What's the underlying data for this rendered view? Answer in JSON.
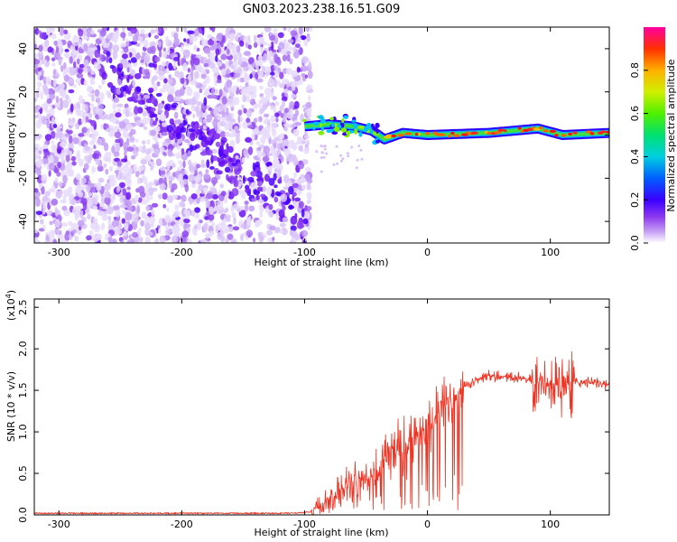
{
  "title": "GN03.2023.238.16.51.G09",
  "colors": {
    "snr_line": "#ee3322",
    "frame": "#000000"
  },
  "chart_data": [
    {
      "type": "heatmap",
      "xlabel": "Height of straight line (km)",
      "ylabel": "Frequency (Hz)",
      "xlim": [
        -320,
        148
      ],
      "ylim": [
        -50,
        50
      ],
      "x_ticks": [
        -300,
        -200,
        -100,
        0,
        100
      ],
      "y_ticks": [
        -40,
        -20,
        0,
        20,
        40
      ],
      "colorbar": {
        "label": "Normalized spectral amplitude",
        "range": [
          0.0,
          1.0
        ],
        "ticks": [
          "0.0",
          "0.2",
          "0.4",
          "0.6",
          "0.8"
        ]
      },
      "features": {
        "noise_region_x": [
          -320,
          -95
        ],
        "diagonal_streak": {
          "x": [
            -250,
            -120
          ],
          "y": [
            25,
            -30
          ]
        },
        "signal_band": [
          {
            "x": -100,
            "y": 4
          },
          {
            "x": -80,
            "y": 5
          },
          {
            "x": -60,
            "y": 4
          },
          {
            "x": -45,
            "y": 2
          },
          {
            "x": -35,
            "y": -2
          },
          {
            "x": -20,
            "y": 1
          },
          {
            "x": 0,
            "y": 0
          },
          {
            "x": 50,
            "y": 1
          },
          {
            "x": 90,
            "y": 3
          },
          {
            "x": 110,
            "y": 0
          },
          {
            "x": 148,
            "y": 1
          }
        ]
      }
    },
    {
      "type": "line",
      "xlabel": "Height of straight line (km)",
      "ylabel": "SNR (10 * v/v)",
      "y_scale_label": "(x10^4)",
      "xlim": [
        -320,
        148
      ],
      "ylim": [
        0.0,
        2.6
      ],
      "x_ticks": [
        -300,
        -200,
        -100,
        0,
        100
      ],
      "y_ticks": [
        "0.0",
        "0.5",
        "1.0",
        "1.5",
        "2.0",
        "2.5"
      ],
      "series": [
        {
          "x": [
            -320,
            -200,
            -110,
            -100,
            -95,
            -90,
            -80,
            -70,
            -60,
            -50,
            -40,
            -30,
            -20,
            -10,
            0,
            10,
            20,
            30,
            40,
            50,
            60,
            70,
            80,
            90,
            100,
            110,
            120,
            130,
            148
          ],
          "y": [
            0.02,
            0.02,
            0.02,
            0.03,
            0.04,
            0.08,
            0.2,
            0.3,
            0.4,
            0.45,
            0.55,
            0.7,
            0.8,
            0.95,
            1.05,
            1.25,
            1.4,
            1.55,
            1.63,
            1.68,
            1.66,
            1.65,
            1.64,
            1.6,
            1.58,
            1.57,
            1.6,
            1.6,
            1.57
          ]
        }
      ]
    }
  ]
}
